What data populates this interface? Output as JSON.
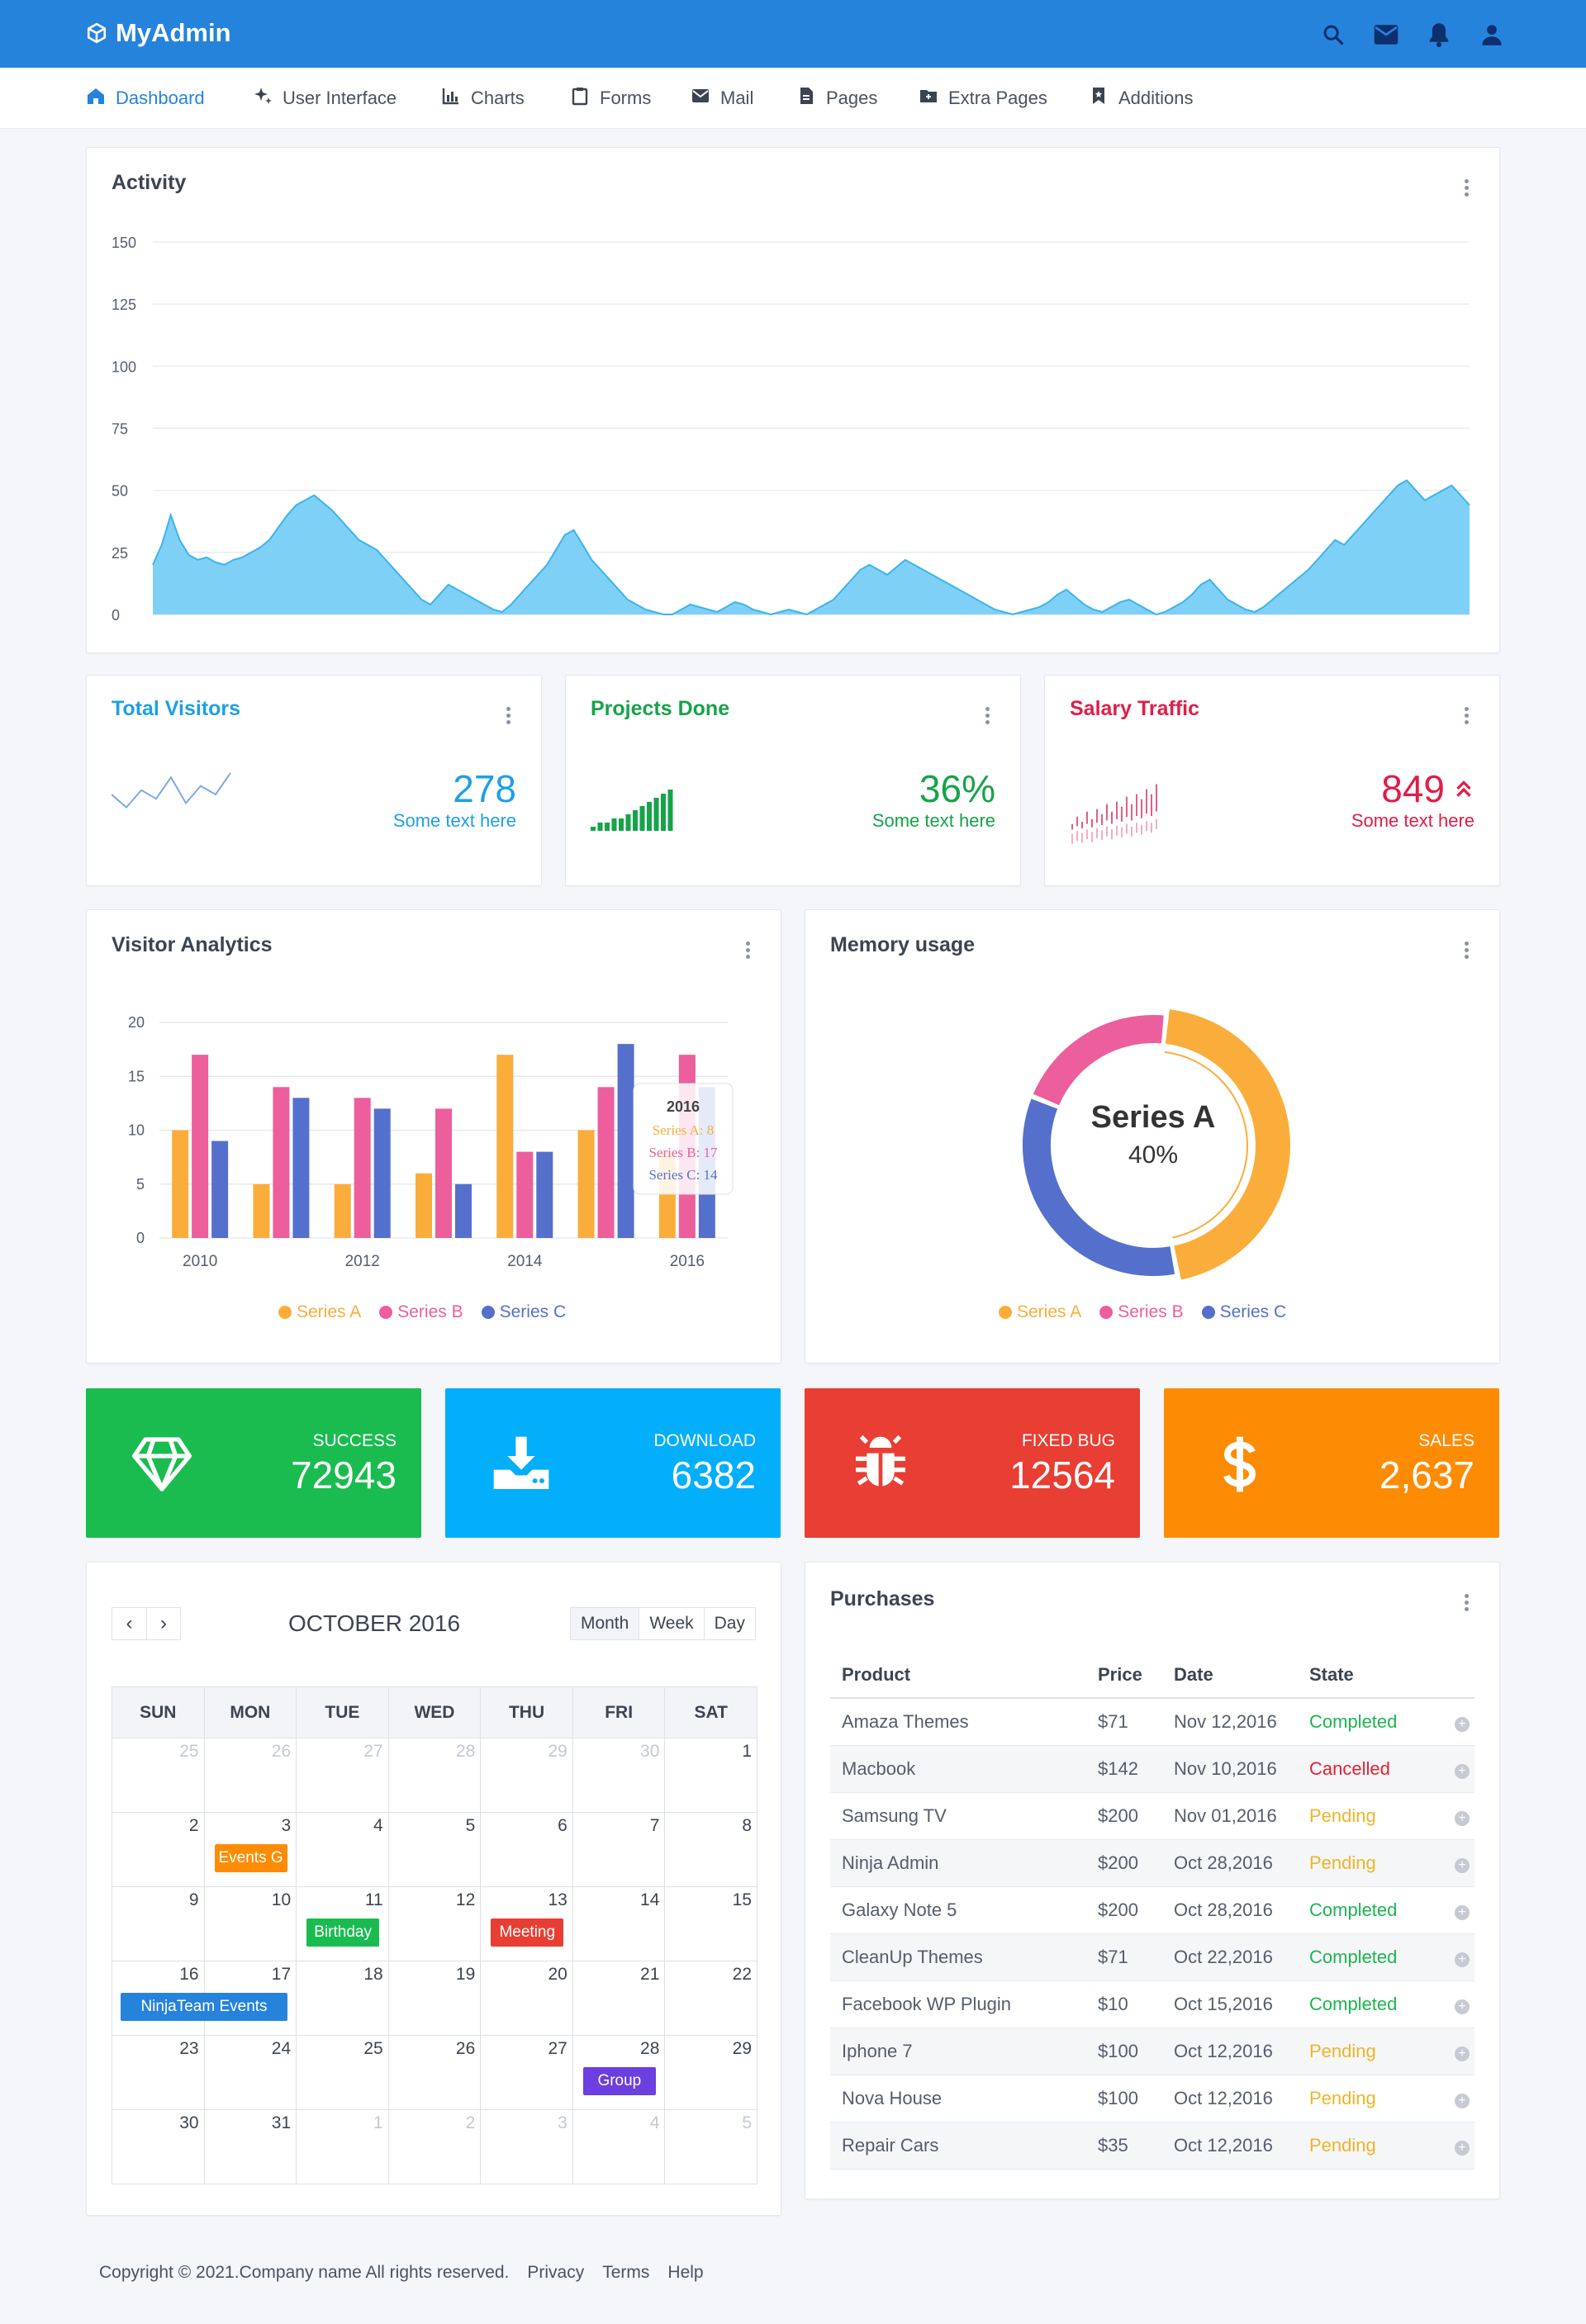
{
  "app": {
    "name": "MyAdmin"
  },
  "nav": [
    {
      "label": "Dashboard",
      "icon": "home-icon"
    },
    {
      "label": "User Interface",
      "icon": "sparkle-icon"
    },
    {
      "label": "Charts",
      "icon": "bar-chart-icon"
    },
    {
      "label": "Forms",
      "icon": "clipboard-icon"
    },
    {
      "label": "Mail",
      "icon": "mail-icon"
    },
    {
      "label": "Pages",
      "icon": "page-icon"
    },
    {
      "label": "Extra Pages",
      "icon": "folder-icon"
    },
    {
      "label": "Additions",
      "icon": "bookmark-icon"
    }
  ],
  "activity": {
    "title": "Activity",
    "chart_data": {
      "type": "area",
      "title": "Activity",
      "ylim": [
        0,
        150
      ],
      "yticks": [
        0,
        25,
        50,
        75,
        100,
        125,
        150
      ],
      "grid": true,
      "color": "#7fd0f7",
      "values": [
        20,
        28,
        40,
        30,
        24,
        22,
        23,
        21,
        20,
        22,
        23,
        25,
        27,
        30,
        35,
        40,
        44,
        46,
        48,
        45,
        42,
        38,
        34,
        30,
        28,
        26,
        22,
        18,
        14,
        10,
        6,
        4,
        8,
        12,
        10,
        8,
        6,
        4,
        2,
        1,
        4,
        8,
        12,
        16,
        20,
        26,
        32,
        34,
        28,
        22,
        18,
        14,
        10,
        6,
        4,
        2,
        1,
        0,
        0,
        2,
        4,
        3,
        2,
        1,
        3,
        5,
        4,
        2,
        1,
        0,
        1,
        2,
        1,
        0,
        2,
        4,
        6,
        10,
        14,
        18,
        20,
        18,
        16,
        19,
        22,
        20,
        18,
        16,
        14,
        12,
        10,
        8,
        6,
        4,
        2,
        1,
        0,
        1,
        2,
        3,
        5,
        8,
        10,
        7,
        4,
        2,
        1,
        3,
        5,
        6,
        4,
        2,
        0,
        1,
        3,
        5,
        8,
        12,
        14,
        10,
        6,
        4,
        2,
        1,
        3,
        6,
        9,
        12,
        15,
        18,
        22,
        26,
        30,
        28,
        32,
        36,
        40,
        44,
        48,
        52,
        54,
        50,
        46,
        48,
        50,
        52,
        48,
        44
      ]
    }
  },
  "stats": [
    {
      "title": "Total Visitors",
      "value": "278",
      "sub": "Some text here",
      "color": "#1e9fe6",
      "spark": [
        10,
        4,
        12,
        8,
        18,
        6,
        14,
        10,
        20
      ]
    },
    {
      "title": "Projects Done",
      "value": "36%",
      "sub": "Some text here",
      "color": "#16a34a",
      "spark": [
        1,
        2,
        2,
        3,
        3,
        4,
        5,
        6,
        7,
        8,
        9,
        10
      ]
    },
    {
      "title": "Salary Traffic",
      "value": "849",
      "sub": "Some text here",
      "color": "#e11d48",
      "spark": [
        4,
        7,
        5,
        9,
        6,
        10,
        8,
        12,
        9,
        13,
        11,
        15,
        12,
        16,
        14,
        18,
        16,
        20
      ]
    }
  ],
  "visitor_analytics": {
    "title": "Visitor Analytics",
    "chart_data": {
      "type": "bar",
      "x": [
        2010,
        2011,
        2012,
        2013,
        2014,
        2015,
        2016
      ],
      "xticks": [
        "2010",
        "2012",
        "2014",
        "2016"
      ],
      "ylim": [
        0,
        20
      ],
      "yticks": [
        0,
        5,
        10,
        15,
        20
      ],
      "series": [
        {
          "name": "Series A",
          "color": "#fbad3b",
          "values": [
            10,
            5,
            5,
            6,
            17,
            10,
            8
          ]
        },
        {
          "name": "Series B",
          "color": "#ec5e9c",
          "values": [
            17,
            14,
            13,
            12,
            8,
            14,
            17
          ]
        },
        {
          "name": "Series C",
          "color": "#5570cc",
          "values": [
            9,
            13,
            12,
            5,
            8,
            18,
            14
          ]
        }
      ],
      "tooltip": {
        "title": "2016",
        "lines": [
          "Series A: 8",
          "Series B: 17",
          "Series C: 14"
        ]
      },
      "legend": "bottom"
    }
  },
  "memory": {
    "title": "Memory usage",
    "center_label": "Series A",
    "center_value": "40%",
    "chart_data": {
      "type": "pie",
      "slices": [
        {
          "name": "Series A",
          "value": 40,
          "color": "#fbad3b"
        },
        {
          "name": "Series B",
          "value": 18,
          "color": "#ec5e9c"
        },
        {
          "name": "Series C",
          "value": 30,
          "color": "#5570cc"
        }
      ]
    }
  },
  "kpis": [
    {
      "label": "SUCCESS",
      "value": "72943",
      "color": "#1abc50",
      "icon": "diamond-icon"
    },
    {
      "label": "DOWNLOAD",
      "value": "6382",
      "color": "#03aefb",
      "icon": "download-icon"
    },
    {
      "label": "FIXED BUG",
      "value": "12564",
      "color": "#e83e33",
      "icon": "bug-icon"
    },
    {
      "label": "SALES",
      "value": "2,637",
      "color": "#fd8c04",
      "icon": "dollar-icon"
    }
  ],
  "calendar": {
    "title": "OCTOBER 2016",
    "views": [
      "Month",
      "Week",
      "Day"
    ],
    "days": [
      "SUN",
      "MON",
      "TUE",
      "WED",
      "THU",
      "FRI",
      "SAT"
    ],
    "weeks": [
      [
        {
          "d": "25",
          "o": true
        },
        {
          "d": "26",
          "o": true
        },
        {
          "d": "27",
          "o": true
        },
        {
          "d": "28",
          "o": true
        },
        {
          "d": "29",
          "o": true
        },
        {
          "d": "30",
          "o": true
        },
        {
          "d": "1"
        }
      ],
      [
        {
          "d": "2"
        },
        {
          "d": "3"
        },
        {
          "d": "4"
        },
        {
          "d": "5"
        },
        {
          "d": "6"
        },
        {
          "d": "7"
        },
        {
          "d": "8"
        }
      ],
      [
        {
          "d": "9"
        },
        {
          "d": "10"
        },
        {
          "d": "11"
        },
        {
          "d": "12"
        },
        {
          "d": "13"
        },
        {
          "d": "14"
        },
        {
          "d": "15"
        }
      ],
      [
        {
          "d": "16"
        },
        {
          "d": "17"
        },
        {
          "d": "18"
        },
        {
          "d": "19"
        },
        {
          "d": "20"
        },
        {
          "d": "21"
        },
        {
          "d": "22"
        }
      ],
      [
        {
          "d": "23"
        },
        {
          "d": "24"
        },
        {
          "d": "25"
        },
        {
          "d": "26"
        },
        {
          "d": "27"
        },
        {
          "d": "28"
        },
        {
          "d": "29"
        }
      ],
      [
        {
          "d": "30"
        },
        {
          "d": "31"
        },
        {
          "d": "1",
          "o": true
        },
        {
          "d": "2",
          "o": true
        },
        {
          "d": "3",
          "o": true
        },
        {
          "d": "4",
          "o": true
        },
        {
          "d": "5",
          "o": true
        }
      ]
    ],
    "events": [
      {
        "label": "Events G",
        "day": "3",
        "color": "#fd8c04"
      },
      {
        "label": "Birthday",
        "day": "11",
        "color": "#1abc50"
      },
      {
        "label": "Meeting",
        "day": "13",
        "color": "#e83e33"
      },
      {
        "label": "NinjaTeam Events",
        "day": "16-17",
        "color": "#2683dc"
      },
      {
        "label": "Group",
        "day": "28",
        "color": "#6b3fe0"
      }
    ]
  },
  "purchases": {
    "title": "Purchases",
    "columns": [
      "Product",
      "Price",
      "Date",
      "State"
    ],
    "rows": [
      [
        "Amaza Themes",
        "$71",
        "Nov 12,2016",
        "Completed"
      ],
      [
        "Macbook",
        "$142",
        "Nov 10,2016",
        "Cancelled"
      ],
      [
        "Samsung TV",
        "$200",
        "Nov 01,2016",
        "Pending"
      ],
      [
        "Ninja Admin",
        "$200",
        "Oct 28,2016",
        "Pending"
      ],
      [
        "Galaxy Note 5",
        "$200",
        "Oct 28,2016",
        "Completed"
      ],
      [
        "CleanUp Themes",
        "$71",
        "Oct 22,2016",
        "Completed"
      ],
      [
        "Facebook WP Plugin",
        "$10",
        "Oct 15,2016",
        "Completed"
      ],
      [
        "Iphone 7",
        "$100",
        "Oct 12,2016",
        "Pending"
      ],
      [
        "Nova House",
        "$100",
        "Oct 12,2016",
        "Pending"
      ],
      [
        "Repair Cars",
        "$35",
        "Oct 12,2016",
        "Pending"
      ]
    ]
  },
  "footer": {
    "copyright": "Copyright © 2021.Company name All rights reserved.",
    "links": [
      "Privacy",
      "Terms",
      "Help"
    ]
  }
}
